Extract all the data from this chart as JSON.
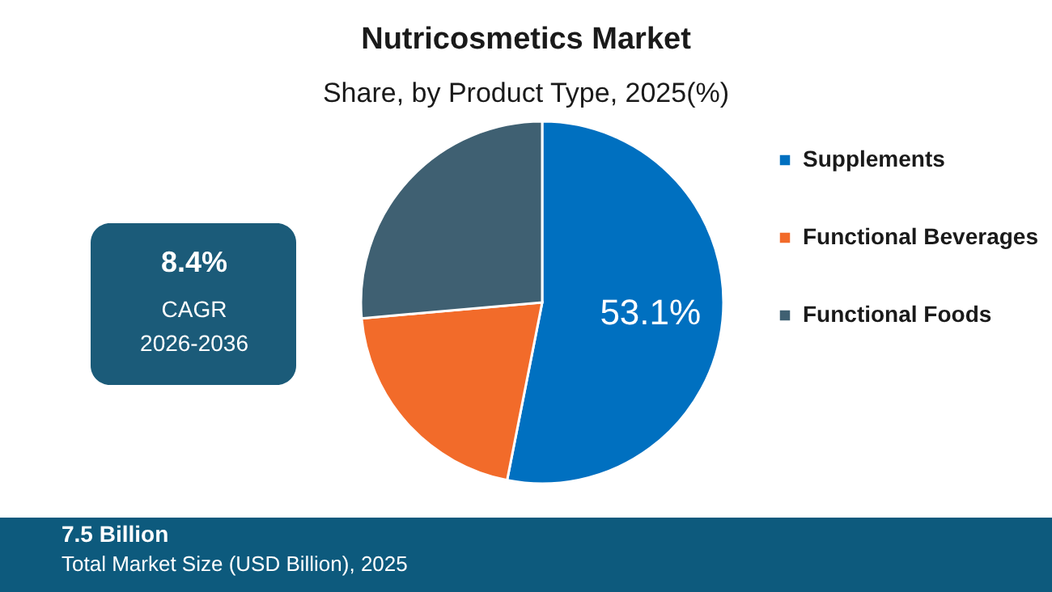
{
  "chart_data": {
    "type": "pie",
    "title": "Nutricosmetics Market",
    "subtitle": "Share, by Product Type, 2025(%)",
    "categories": [
      "Supplements",
      "Functional Beverages",
      "Functional Foods"
    ],
    "values": [
      53.1,
      20.5,
      26.4
    ],
    "colors": [
      "#0070c0",
      "#f26b2a",
      "#3f6072"
    ],
    "value_labels": [
      "53.1%",
      null,
      null
    ],
    "legend": "right",
    "annotations": [
      "8.4%",
      "CAGR",
      "2026-2036",
      "7.5 Billion",
      "Total Market Size (USD Billion), 2025"
    ]
  }
}
